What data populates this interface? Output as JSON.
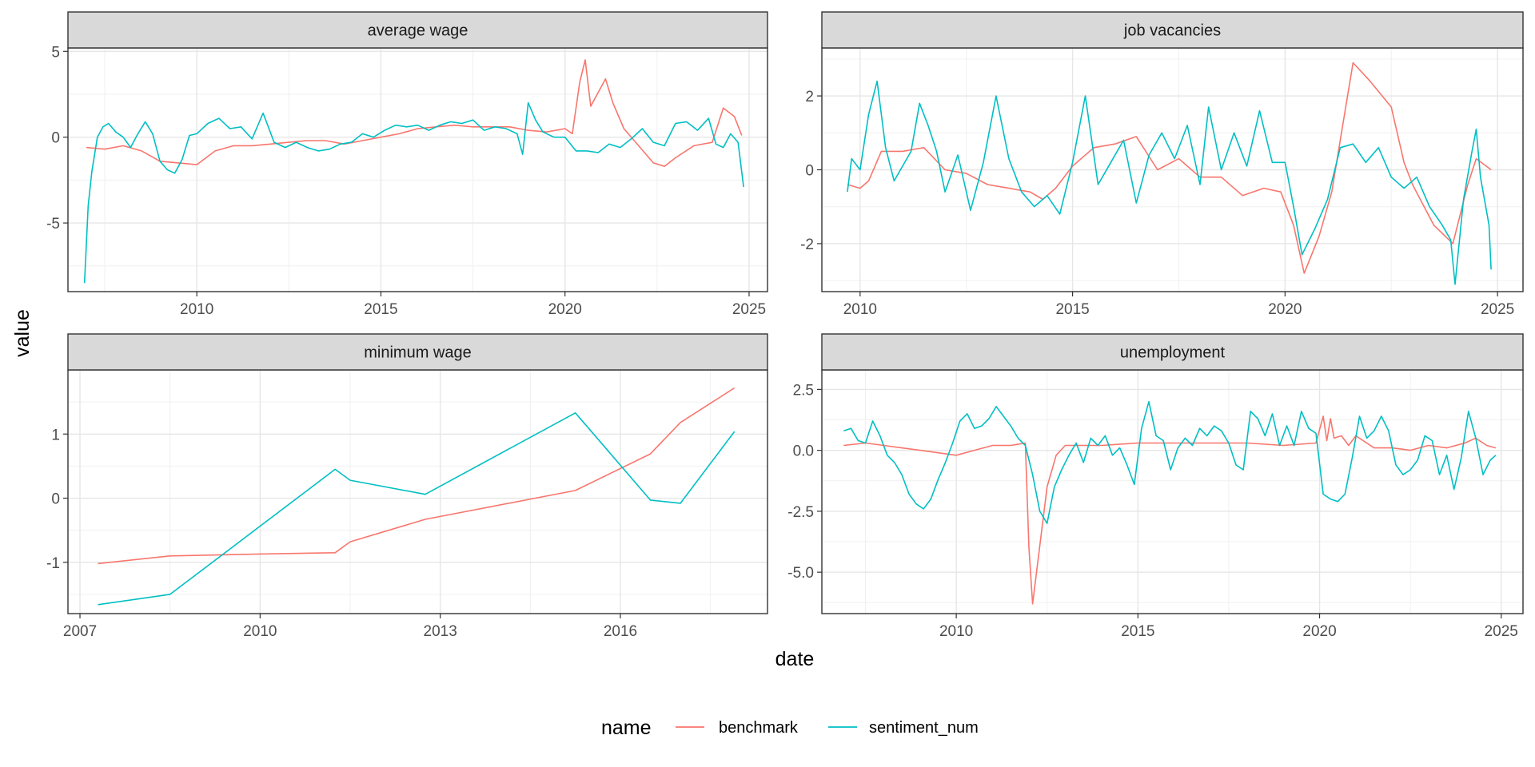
{
  "chart_data": {
    "type": "line",
    "layout": "facet_wrap 2x2",
    "ylabel": "value",
    "xlabel": "date",
    "legend": {
      "title": "name",
      "position": "bottom",
      "entries": [
        "benchmark",
        "sentiment_num"
      ]
    },
    "colors": {
      "benchmark": "#F8766D",
      "sentiment_num": "#00BFC4"
    },
    "panels": [
      {
        "title": "average wage",
        "xlim": [
          2006.5,
          2025.5
        ],
        "ylim": [
          -9.0,
          5.2
        ],
        "xticks": [
          2010,
          2015,
          2020,
          2025
        ],
        "xtick_labels": [
          "2010",
          "2015",
          "2020",
          "2025"
        ],
        "yticks": [
          5,
          0,
          -5
        ],
        "ytick_labels": [
          "5",
          "0",
          "-5"
        ],
        "series": [
          {
            "name": "benchmark",
            "x": [
              2007.0,
              2007.5,
              2008.0,
              2008.5,
              2009.0,
              2009.5,
              2010.0,
              2010.5,
              2011.0,
              2011.5,
              2012.0,
              2012.5,
              2013.0,
              2013.5,
              2014.0,
              2014.5,
              2015.0,
              2015.5,
              2016.0,
              2016.5,
              2017.0,
              2017.5,
              2018.0,
              2018.5,
              2019.0,
              2019.5,
              2020.0,
              2020.2,
              2020.4,
              2020.55,
              2020.7,
              2020.9,
              2021.1,
              2021.3,
              2021.6,
              2022.0,
              2022.4,
              2022.7,
              2023.0,
              2023.5,
              2024.0,
              2024.3,
              2024.6,
              2024.8
            ],
            "y": [
              -0.6,
              -0.7,
              -0.5,
              -0.8,
              -1.4,
              -1.5,
              -1.6,
              -0.8,
              -0.5,
              -0.5,
              -0.4,
              -0.3,
              -0.2,
              -0.2,
              -0.4,
              -0.2,
              0.0,
              0.2,
              0.5,
              0.6,
              0.7,
              0.6,
              0.6,
              0.6,
              0.4,
              0.3,
              0.5,
              0.2,
              3.2,
              4.5,
              1.8,
              2.6,
              3.4,
              2.0,
              0.5,
              -0.5,
              -1.5,
              -1.7,
              -1.2,
              -0.5,
              -0.3,
              1.7,
              1.2,
              0.1
            ]
          },
          {
            "name": "sentiment_num",
            "x": [
              2006.95,
              2007.05,
              2007.15,
              2007.3,
              2007.45,
              2007.6,
              2007.8,
              2008.0,
              2008.2,
              2008.4,
              2008.6,
              2008.8,
              2009.0,
              2009.2,
              2009.4,
              2009.6,
              2009.8,
              2010.0,
              2010.3,
              2010.6,
              2010.9,
              2011.2,
              2011.5,
              2011.8,
              2012.1,
              2012.4,
              2012.7,
              2013.0,
              2013.3,
              2013.6,
              2013.9,
              2014.2,
              2014.5,
              2014.8,
              2015.1,
              2015.4,
              2015.7,
              2016.0,
              2016.3,
              2016.6,
              2016.9,
              2017.2,
              2017.5,
              2017.8,
              2018.1,
              2018.4,
              2018.7,
              2018.85,
              2019.0,
              2019.2,
              2019.4,
              2019.7,
              2020.0,
              2020.3,
              2020.6,
              2020.9,
              2021.2,
              2021.5,
              2021.8,
              2022.1,
              2022.4,
              2022.7,
              2023.0,
              2023.3,
              2023.6,
              2023.9,
              2024.1,
              2024.3,
              2024.5,
              2024.7,
              2024.85
            ],
            "y": [
              -8.5,
              -4.0,
              -2.0,
              0.0,
              0.6,
              0.8,
              0.3,
              0.0,
              -0.6,
              0.2,
              0.9,
              0.2,
              -1.4,
              -1.9,
              -2.1,
              -1.3,
              0.1,
              0.2,
              0.8,
              1.1,
              0.5,
              0.6,
              -0.1,
              1.4,
              -0.3,
              -0.6,
              -0.3,
              -0.6,
              -0.8,
              -0.7,
              -0.4,
              -0.3,
              0.2,
              0.0,
              0.4,
              0.7,
              0.6,
              0.7,
              0.4,
              0.7,
              0.9,
              0.8,
              1.0,
              0.4,
              0.6,
              0.5,
              0.2,
              -1.0,
              2.0,
              1.0,
              0.3,
              0.0,
              0.0,
              -0.8,
              -0.8,
              -0.9,
              -0.4,
              -0.6,
              -0.1,
              0.5,
              -0.3,
              -0.5,
              0.8,
              0.9,
              0.4,
              1.1,
              -0.4,
              -0.6,
              0.2,
              -0.3,
              -2.9
            ]
          }
        ]
      },
      {
        "title": "job vacancies",
        "xlim": [
          2009.1,
          2025.6
        ],
        "ylim": [
          -3.3,
          3.3
        ],
        "xticks": [
          2010,
          2015,
          2020,
          2025
        ],
        "xtick_labels": [
          "2010",
          "2015",
          "2020",
          "2025"
        ],
        "yticks": [
          2,
          0,
          -2
        ],
        "ytick_labels": [
          "2",
          "0",
          "-2"
        ],
        "series": [
          {
            "name": "benchmark",
            "x": [
              2009.7,
              2010.0,
              2010.2,
              2010.5,
              2011.0,
              2011.5,
              2012.0,
              2012.5,
              2013.0,
              2013.5,
              2014.0,
              2014.3,
              2014.6,
              2015.0,
              2015.5,
              2016.0,
              2016.5,
              2017.0,
              2017.5,
              2018.0,
              2018.5,
              2019.0,
              2019.5,
              2019.9,
              2020.2,
              2020.45,
              2020.8,
              2021.1,
              2021.3,
              2021.6,
              2022.0,
              2022.5,
              2022.8,
              2023.0,
              2023.5,
              2023.95,
              2024.3,
              2024.5,
              2024.85
            ],
            "y": [
              -0.4,
              -0.5,
              -0.3,
              0.5,
              0.5,
              0.6,
              0.0,
              -0.1,
              -0.4,
              -0.5,
              -0.6,
              -0.8,
              -0.5,
              0.1,
              0.6,
              0.7,
              0.9,
              0.0,
              0.3,
              -0.2,
              -0.2,
              -0.7,
              -0.5,
              -0.6,
              -1.5,
              -2.8,
              -1.8,
              -0.6,
              0.8,
              2.9,
              2.4,
              1.7,
              0.2,
              -0.4,
              -1.5,
              -2.0,
              -0.4,
              0.3,
              0.0
            ]
          },
          {
            "name": "sentiment_num",
            "x": [
              2009.7,
              2009.8,
              2010.0,
              2010.2,
              2010.4,
              2010.6,
              2010.8,
              2011.0,
              2011.2,
              2011.4,
              2011.6,
              2011.8,
              2012.0,
              2012.3,
              2012.6,
              2012.9,
              2013.2,
              2013.5,
              2013.8,
              2014.1,
              2014.4,
              2014.7,
              2015.0,
              2015.3,
              2015.6,
              2015.9,
              2016.2,
              2016.5,
              2016.8,
              2017.1,
              2017.4,
              2017.7,
              2018.0,
              2018.2,
              2018.5,
              2018.8,
              2019.1,
              2019.4,
              2019.7,
              2020.0,
              2020.2,
              2020.4,
              2020.7,
              2021.0,
              2021.3,
              2021.6,
              2021.9,
              2022.2,
              2022.5,
              2022.8,
              2023.1,
              2023.4,
              2023.7,
              2023.9,
              2024.0,
              2024.2,
              2024.4,
              2024.5,
              2024.6,
              2024.8,
              2024.85
            ],
            "y": [
              -0.6,
              0.3,
              0.0,
              1.5,
              2.4,
              0.6,
              -0.3,
              0.1,
              0.5,
              1.8,
              1.2,
              0.5,
              -0.6,
              0.4,
              -1.1,
              0.2,
              2.0,
              0.3,
              -0.6,
              -1.0,
              -0.7,
              -1.2,
              0.2,
              2.0,
              -0.4,
              0.2,
              0.8,
              -0.9,
              0.4,
              1.0,
              0.3,
              1.2,
              -0.4,
              1.7,
              0.0,
              1.0,
              0.1,
              1.6,
              0.2,
              0.2,
              -1.0,
              -2.3,
              -1.6,
              -0.8,
              0.6,
              0.7,
              0.2,
              0.6,
              -0.2,
              -0.5,
              -0.2,
              -1.0,
              -1.5,
              -1.9,
              -3.1,
              -0.8,
              0.5,
              1.1,
              -0.2,
              -1.5,
              -2.7
            ]
          }
        ]
      },
      {
        "title": "minimum wage",
        "xlim": [
          2006.8,
          2018.45
        ],
        "ylim": [
          -1.8,
          2.0
        ],
        "xticks": [
          2007,
          2010,
          2013,
          2016
        ],
        "xtick_labels": [
          "2007",
          "2010",
          "2013",
          "2016"
        ],
        "yticks": [
          1,
          0,
          -1
        ],
        "ytick_labels": [
          "1",
          "0",
          "-1"
        ],
        "series": [
          {
            "name": "benchmark",
            "x": [
              2007.3,
              2008.5,
              2010.0,
              2011.25,
              2011.5,
              2012.75,
              2015.25,
              2016.5,
              2017.0,
              2017.9
            ],
            "y": [
              -1.02,
              -0.9,
              -0.87,
              -0.85,
              -0.68,
              -0.33,
              0.12,
              0.69,
              1.18,
              1.72
            ]
          },
          {
            "name": "sentiment_num",
            "x": [
              2007.3,
              2008.5,
              2011.25,
              2011.5,
              2012.75,
              2015.25,
              2016.5,
              2017.0,
              2017.9
            ],
            "y": [
              -1.66,
              -1.5,
              0.45,
              0.28,
              0.06,
              1.33,
              -0.03,
              -0.08,
              1.04
            ]
          }
        ]
      },
      {
        "title": "unemployment",
        "xlim": [
          2006.3,
          2025.6
        ],
        "ylim": [
          -6.7,
          3.3
        ],
        "xticks": [
          2010,
          2015,
          2020,
          2025
        ],
        "xtick_labels": [
          "2010",
          "2015",
          "2020",
          "2025"
        ],
        "yticks": [
          2.5,
          0,
          -2.5,
          -5
        ],
        "ytick_labels": [
          "2.5",
          "0.0",
          "-2.5",
          "-5.0"
        ],
        "series": [
          {
            "name": "benchmark",
            "x": [
              2006.9,
              2007.5,
              2008.0,
              2008.5,
              2009.0,
              2009.5,
              2010.0,
              2010.5,
              2011.0,
              2011.5,
              2011.9,
              2012.0,
              2012.1,
              2012.25,
              2012.5,
              2012.75,
              2013.0,
              2013.5,
              2014.0,
              2015.0,
              2016.0,
              2017.0,
              2018.0,
              2019.0,
              2019.9,
              2020.1,
              2020.2,
              2020.3,
              2020.4,
              2020.6,
              2020.8,
              2021.0,
              2021.2,
              2021.5,
              2022.0,
              2022.5,
              2023.0,
              2023.5,
              2024.0,
              2024.3,
              2024.6,
              2024.85
            ],
            "y": [
              0.2,
              0.3,
              0.2,
              0.1,
              0.0,
              -0.1,
              -0.2,
              0.0,
              0.2,
              0.2,
              0.3,
              -4.0,
              -6.3,
              -4.5,
              -1.5,
              -0.2,
              0.2,
              0.2,
              0.2,
              0.3,
              0.3,
              0.3,
              0.3,
              0.2,
              0.3,
              1.4,
              0.4,
              1.3,
              0.5,
              0.6,
              0.2,
              0.6,
              0.4,
              0.1,
              0.1,
              0.0,
              0.2,
              0.1,
              0.3,
              0.5,
              0.2,
              0.1
            ]
          },
          {
            "name": "sentiment_num",
            "x": [
              2006.9,
              2007.1,
              2007.3,
              2007.5,
              2007.7,
              2007.9,
              2008.1,
              2008.3,
              2008.5,
              2008.7,
              2008.9,
              2009.1,
              2009.3,
              2009.5,
              2009.7,
              2009.9,
              2010.1,
              2010.3,
              2010.5,
              2010.7,
              2010.9,
              2011.1,
              2011.3,
              2011.5,
              2011.7,
              2011.9,
              2012.1,
              2012.3,
              2012.5,
              2012.7,
              2012.9,
              2013.1,
              2013.3,
              2013.5,
              2013.7,
              2013.9,
              2014.1,
              2014.3,
              2014.5,
              2014.7,
              2014.9,
              2015.1,
              2015.3,
              2015.5,
              2015.7,
              2015.9,
              2016.1,
              2016.3,
              2016.5,
              2016.7,
              2016.9,
              2017.1,
              2017.3,
              2017.5,
              2017.7,
              2017.9,
              2018.1,
              2018.3,
              2018.5,
              2018.7,
              2018.9,
              2019.1,
              2019.3,
              2019.5,
              2019.7,
              2019.9,
              2020.1,
              2020.3,
              2020.5,
              2020.7,
              2020.9,
              2021.1,
              2021.3,
              2021.5,
              2021.7,
              2021.9,
              2022.1,
              2022.3,
              2022.5,
              2022.7,
              2022.9,
              2023.1,
              2023.3,
              2023.5,
              2023.7,
              2023.9,
              2024.1,
              2024.3,
              2024.5,
              2024.7,
              2024.85
            ],
            "y": [
              0.8,
              0.9,
              0.4,
              0.3,
              1.2,
              0.6,
              -0.2,
              -0.5,
              -1.0,
              -1.8,
              -2.2,
              -2.4,
              -2.0,
              -1.2,
              -0.5,
              0.3,
              1.2,
              1.5,
              0.9,
              1.0,
              1.3,
              1.8,
              1.4,
              1.0,
              0.5,
              0.2,
              -1.0,
              -2.5,
              -3.0,
              -1.5,
              -0.8,
              -0.2,
              0.3,
              -0.5,
              0.5,
              0.2,
              0.6,
              -0.2,
              0.1,
              -0.6,
              -1.4,
              0.9,
              2.0,
              0.6,
              0.4,
              -0.8,
              0.1,
              0.5,
              0.2,
              0.9,
              0.6,
              1.0,
              0.8,
              0.3,
              -0.6,
              -0.8,
              1.6,
              1.3,
              0.6,
              1.5,
              0.2,
              1.0,
              0.2,
              1.6,
              0.9,
              0.7,
              -1.8,
              -2.0,
              -2.1,
              -1.8,
              -0.3,
              1.4,
              0.5,
              0.8,
              1.4,
              0.8,
              -0.6,
              -1.0,
              -0.8,
              -0.4,
              0.6,
              0.4,
              -1.0,
              -0.2,
              -1.6,
              -0.3,
              1.6,
              0.5,
              -1.0,
              -0.4,
              -0.2
            ]
          }
        ]
      }
    ]
  }
}
